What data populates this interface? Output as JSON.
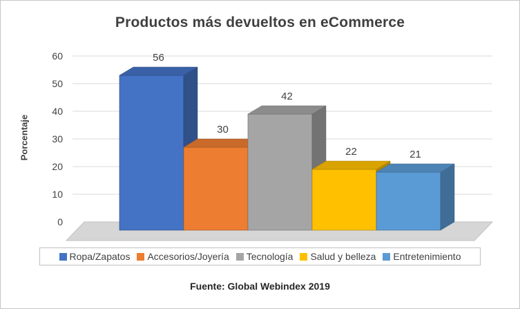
{
  "chart_data": {
    "type": "bar",
    "subtype": "3d-column",
    "title": "Productos más devueltos en eCommerce",
    "categories": [
      "Ropa/Zapatos",
      "Accesorios/Joyería",
      "Tecnología",
      "Salud y belleza",
      "Entretenimiento"
    ],
    "values": [
      56,
      30,
      42,
      22,
      21
    ],
    "colors": [
      "#4472C4",
      "#ED7D31",
      "#A5A5A5",
      "#FFC000",
      "#5B9BD5"
    ],
    "data_labels": [
      56,
      30,
      42,
      22,
      21
    ],
    "xlabel": "",
    "ylabel": "Porcentaje",
    "ylim": [
      0,
      60
    ],
    "yticks": [
      0,
      10,
      20,
      30,
      40,
      50,
      60
    ],
    "grid": true,
    "legend_position": "bottom",
    "source": "Fuente: Global Webindex 2019"
  },
  "ui_colors": {
    "text": "#404040",
    "gridline": "#d9d9d9",
    "floor": "#d6d6d6",
    "floor_edge": "#c2c2c2",
    "legend_border": "#bfbfbf",
    "card_border": "#c6c6c6"
  }
}
